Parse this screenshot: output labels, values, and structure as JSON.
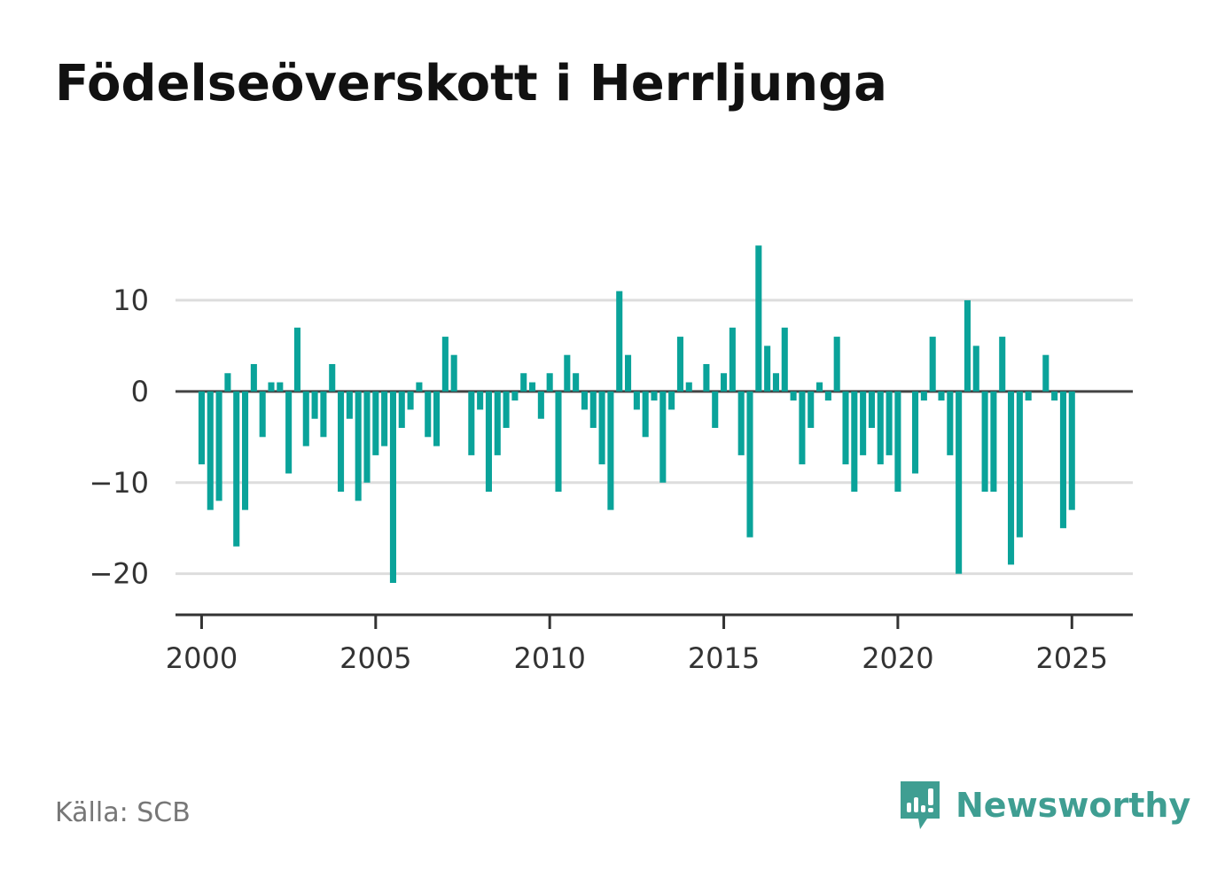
{
  "title": "Födelseöverskott i Herrljunga",
  "source": "Källa: SCB",
  "brand": {
    "name": "Newsworthy",
    "icon": "newsworthy-logo-icon",
    "color": "#3f9e92"
  },
  "colors": {
    "bar": "#0aa39a",
    "zero_line": "#444444",
    "grid": "#dddddd",
    "axis": "#333333"
  },
  "chart_data": {
    "type": "bar",
    "title": "Födelseöverskott i Herrljunga",
    "xlabel": "",
    "ylabel": "",
    "ylim": [
      -24.5,
      20
    ],
    "xlim": [
      1999.25,
      2026.75
    ],
    "grid": "horizontal",
    "y_ticks": [
      10,
      0,
      -10,
      -20
    ],
    "y_tick_labels": [
      "10",
      "0",
      "−10",
      "−20"
    ],
    "x_ticks": [
      2000,
      2005,
      2010,
      2015,
      2020,
      2025
    ],
    "x_tick_labels": [
      "2000",
      "2005",
      "2010",
      "2015",
      "2020",
      "2025"
    ],
    "start_year": 2000,
    "periods_per_year": 4,
    "values": [
      -8,
      -13,
      -12,
      2,
      -17,
      -13,
      3,
      -5,
      1,
      1,
      -9,
      7,
      -6,
      -3,
      -5,
      3,
      -11,
      -3,
      -12,
      -10,
      -7,
      -6,
      -21,
      -4,
      -2,
      1,
      -5,
      -6,
      6,
      4,
      0,
      -7,
      -2,
      -11,
      -7,
      -4,
      -1,
      2,
      1,
      -3,
      2,
      -11,
      4,
      2,
      -2,
      -4,
      -8,
      -13,
      11,
      4,
      -2,
      -5,
      -1,
      -10,
      -2,
      6,
      1,
      0,
      3,
      -4,
      2,
      7,
      -7,
      -16,
      16,
      5,
      2,
      7,
      -1,
      -8,
      -4,
      1,
      -1,
      6,
      -8,
      -11,
      -7,
      -4,
      -8,
      -7,
      -11,
      0,
      -9,
      -1,
      6,
      -1,
      -7,
      -20,
      10,
      5,
      -11,
      -11,
      6,
      -19,
      -16,
      -1,
      0,
      4,
      -1,
      -15,
      -13
    ]
  }
}
